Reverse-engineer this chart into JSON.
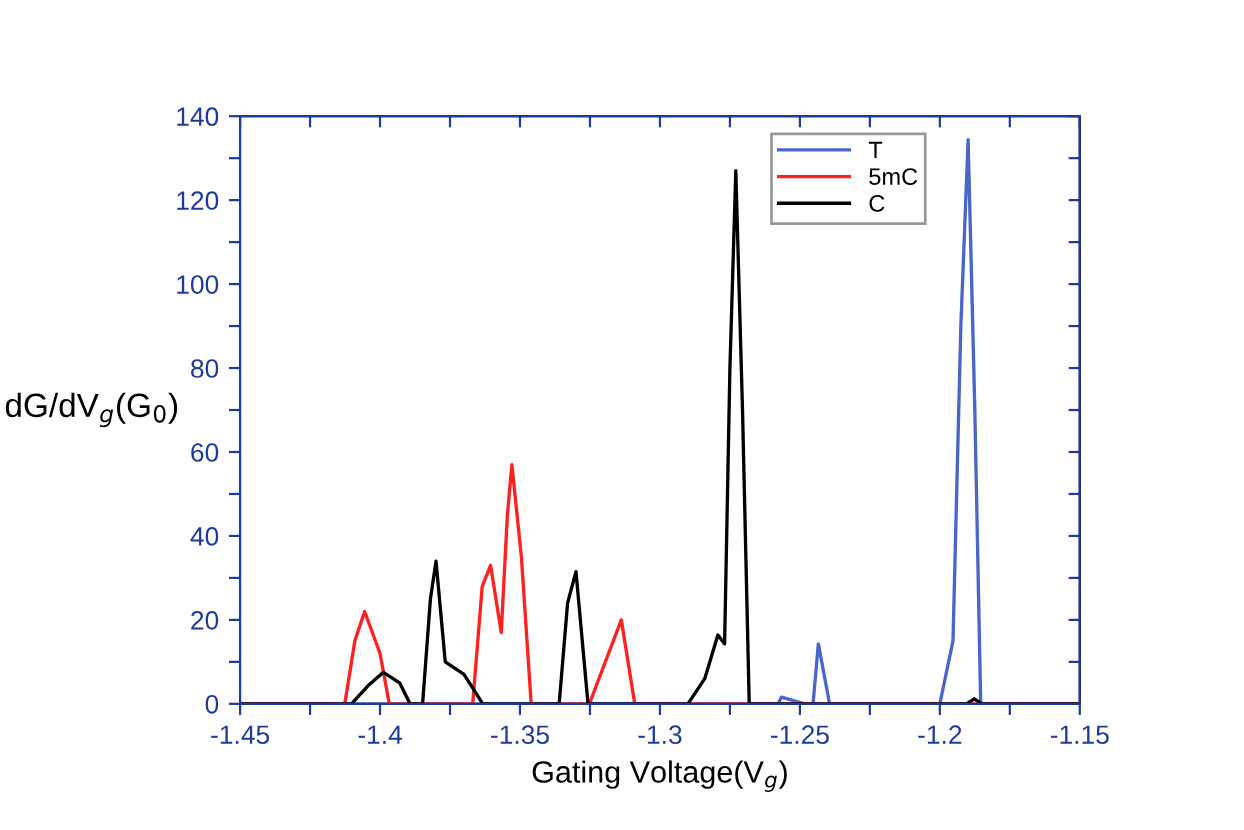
{
  "chart_data": {
    "type": "line",
    "xlabel": "Gating Voltage(V$_{g}$)",
    "ylabel": "dG/dV$_{g}$(G$_{0}$)",
    "xlim": [
      -1.45,
      -1.15
    ],
    "ylim": [
      0,
      140
    ],
    "xticks": [
      -1.45,
      {
        "value": -1.425,
        "label": null
      },
      -1.4,
      {
        "value": -1.375,
        "label": null
      },
      -1.35,
      {
        "value": -1.325,
        "label": null
      },
      -1.3,
      {
        "value": -1.275,
        "label": null
      },
      -1.25,
      {
        "value": -1.225,
        "label": null
      },
      -1.2,
      {
        "value": -1.175,
        "label": null
      },
      -1.15
    ],
    "yticks": [
      0,
      {
        "value": 10,
        "label": null
      },
      20,
      {
        "value": 30,
        "label": null
      },
      40,
      {
        "value": 50,
        "label": null
      },
      60,
      {
        "value": 70,
        "label": null
      },
      80,
      {
        "value": 90,
        "label": null
      },
      100,
      {
        "value": 110,
        "label": null
      },
      120,
      {
        "value": 130,
        "label": null
      },
      140
    ],
    "grid": false,
    "legend": "top right",
    "marker": "none",
    "line_style": "solid",
    "series": [
      {
        "name": "T",
        "color": "#4a66c8",
        "x": [
          -1.45,
          -1.2578,
          -1.2566,
          -1.2483,
          -1.2453,
          -1.2434,
          -1.2394,
          -1.2,
          -1.1953,
          -1.1925,
          -1.1899,
          -1.1875,
          -1.1854,
          -1.15
        ],
        "values": [
          0,
          0,
          1.6,
          0,
          0,
          14.3,
          0,
          0,
          15,
          90,
          134.4,
          70,
          0,
          0
        ]
      },
      {
        "name": "5mC",
        "color": "#ff2020",
        "x": [
          -1.45,
          -1.4126,
          -1.409,
          -1.4055,
          -1.4,
          -1.3967,
          -1.3669,
          -1.3635,
          -1.3605,
          -1.3567,
          -1.3545,
          -1.3529,
          -1.3495,
          -1.346,
          -1.3252,
          -1.3138,
          -1.309,
          -1.15
        ],
        "values": [
          0,
          0,
          15,
          22,
          12,
          0,
          0,
          28,
          33,
          17,
          45,
          57,
          35,
          0,
          0,
          20,
          0,
          0
        ]
      },
      {
        "name": "C",
        "color": "#000000",
        "x": [
          -1.45,
          -1.4102,
          -1.404,
          -1.3988,
          -1.393,
          -1.3893,
          -1.3848,
          -1.382,
          -1.38,
          -1.3767,
          -1.37,
          -1.3633,
          -1.336,
          -1.333,
          -1.33,
          -1.3257,
          -1.29,
          -1.284,
          -1.2793,
          -1.2769,
          -1.275,
          -1.2729,
          -1.2705,
          -1.2681,
          -1.1905,
          -1.1877,
          -1.185,
          -1.15
        ],
        "values": [
          0,
          0,
          4.5,
          7.5,
          5,
          0,
          0,
          25,
          34,
          10,
          7,
          0,
          0,
          24,
          31.5,
          0,
          0,
          6,
          16.4,
          14.3,
          80,
          127,
          70,
          0,
          0,
          1.2,
          0,
          0
        ]
      }
    ]
  }
}
